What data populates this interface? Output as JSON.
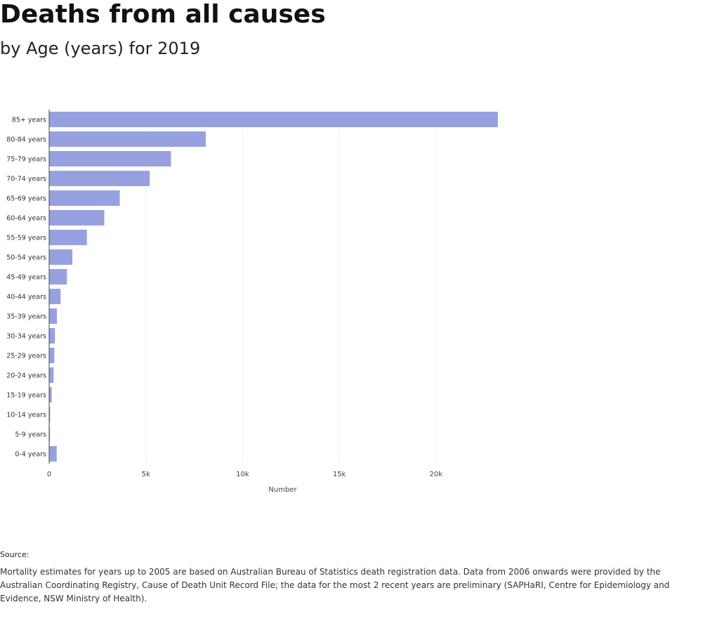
{
  "header": {
    "title": "Deaths from all causes",
    "subtitle": "by Age (years) for 2019"
  },
  "chart_data": {
    "type": "bar",
    "orientation": "horizontal",
    "categories": [
      "85+ years",
      "80-84 years",
      "75-79 years",
      "70-74 years",
      "65-69 years",
      "60-64 years",
      "55-59 years",
      "50-54 years",
      "45-49 years",
      "40-44 years",
      "35-39 years",
      "30-34 years",
      "25-29 years",
      "20-24 years",
      "15-19 years",
      "10-14 years",
      "5-9 years",
      "0-4 years"
    ],
    "values": [
      23200,
      8100,
      6300,
      5200,
      3650,
      2850,
      1950,
      1200,
      920,
      590,
      400,
      300,
      270,
      230,
      130,
      50,
      40,
      390
    ],
    "xlabel": "Number",
    "ylabel": "",
    "xlim": [
      0,
      25600
    ],
    "xticks": [
      0,
      5000,
      10000,
      15000,
      20000
    ],
    "xtick_labels": [
      "0",
      "5k",
      "10k",
      "15k",
      "20k"
    ],
    "grid": true,
    "bar_color": "#98a1e0",
    "grid_color": "#eeeeee"
  },
  "footer": {
    "source_label": "Source:",
    "source_text": "Mortality estimates for years up to 2005 are based on Australian Bureau of Statistics death registration data. Data from 2006 onwards were provided by the Australian Coordinating Registry, Cause of Death Unit Record File; the data for the most 2 recent years are preliminary (SAPHaRI, Centre for Epidemiology and Evidence, NSW Ministry of Health)."
  }
}
